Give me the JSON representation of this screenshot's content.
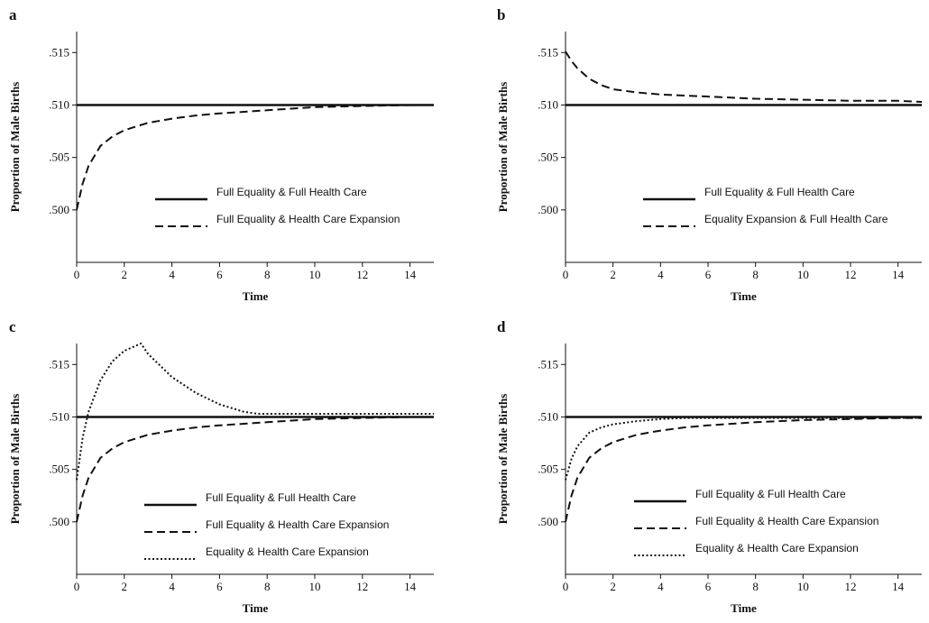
{
  "chart_data": [
    {
      "panel": "a",
      "type": "line",
      "xlabel": "Time",
      "ylabel": "Proportion of Male Births",
      "xlim": [
        0,
        15
      ],
      "ylim": [
        0.495,
        0.517
      ],
      "xticks": [
        0,
        2,
        4,
        6,
        8,
        10,
        12,
        14
      ],
      "xtick_labels": [
        "0",
        "2",
        "4",
        "6",
        "8",
        "10",
        "12",
        "14"
      ],
      "yticks": [
        0.5,
        0.505,
        0.51,
        0.515
      ],
      "ytick_labels": [
        ".500",
        ".505",
        ".510",
        ".515"
      ],
      "legend_position": "lower-right",
      "series": [
        {
          "name": "Full Equality & Full Health Care",
          "style": "solid",
          "x": [
            0,
            15
          ],
          "y": [
            0.51,
            0.51
          ]
        },
        {
          "name": "Full Equality & Health Care Expansion",
          "style": "dashed",
          "x": [
            0,
            0.25,
            0.5,
            1,
            1.5,
            2,
            3,
            4,
            5,
            6,
            8,
            10,
            12,
            14,
            15
          ],
          "y": [
            0.5,
            0.5025,
            0.5042,
            0.5061,
            0.507,
            0.5076,
            0.5083,
            0.5087,
            0.509,
            0.5092,
            0.5095,
            0.5098,
            0.5099,
            0.51,
            0.51
          ]
        }
      ]
    },
    {
      "panel": "b",
      "type": "line",
      "xlabel": "Time",
      "ylabel": "Proportion of Male Births",
      "xlim": [
        0,
        15
      ],
      "ylim": [
        0.495,
        0.517
      ],
      "xticks": [
        0,
        2,
        4,
        6,
        8,
        10,
        12,
        14
      ],
      "xtick_labels": [
        "0",
        "2",
        "4",
        "6",
        "8",
        "10",
        "12",
        "14"
      ],
      "yticks": [
        0.5,
        0.505,
        0.51,
        0.515
      ],
      "ytick_labels": [
        ".500",
        ".505",
        ".510",
        ".515"
      ],
      "legend_position": "lower-right",
      "series": [
        {
          "name": "Full Equality & Full Health Care",
          "style": "solid",
          "x": [
            0,
            15
          ],
          "y": [
            0.51,
            0.51
          ]
        },
        {
          "name": "Equality Expansion & Full Health Care",
          "style": "dashed",
          "x": [
            0,
            0.25,
            0.5,
            1,
            1.5,
            2,
            3,
            4,
            5,
            6,
            8,
            10,
            12,
            14,
            15
          ],
          "y": [
            0.5151,
            0.5142,
            0.5135,
            0.5125,
            0.5119,
            0.5115,
            0.5112,
            0.511,
            0.5109,
            0.5108,
            0.5106,
            0.5105,
            0.5104,
            0.5104,
            0.5103
          ]
        }
      ]
    },
    {
      "panel": "c",
      "type": "line",
      "xlabel": "Time",
      "ylabel": "Proportion of Male Births",
      "xlim": [
        0,
        15
      ],
      "ylim": [
        0.495,
        0.517
      ],
      "xticks": [
        0,
        2,
        4,
        6,
        8,
        10,
        12,
        14
      ],
      "xtick_labels": [
        "0",
        "2",
        "4",
        "6",
        "8",
        "10",
        "12",
        "14"
      ],
      "yticks": [
        0.5,
        0.505,
        0.51,
        0.515
      ],
      "ytick_labels": [
        ".500",
        ".505",
        ".510",
        ".515"
      ],
      "legend_position": "lower-right",
      "series": [
        {
          "name": "Full Equality & Full Health Care",
          "style": "solid",
          "x": [
            0,
            15
          ],
          "y": [
            0.51,
            0.51
          ]
        },
        {
          "name": "Full Equality & Health Care Expansion",
          "style": "dashed",
          "x": [
            0,
            0.25,
            0.5,
            1,
            1.5,
            2,
            3,
            4,
            5,
            6,
            8,
            10,
            12,
            14,
            15
          ],
          "y": [
            0.5,
            0.5025,
            0.5042,
            0.5061,
            0.507,
            0.5076,
            0.5083,
            0.5087,
            0.509,
            0.5092,
            0.5095,
            0.5098,
            0.5099,
            0.51,
            0.51
          ]
        },
        {
          "name": "Equality & Health Care Expansion",
          "style": "dotted",
          "x": [
            0,
            0.25,
            0.5,
            1,
            1.5,
            2,
            2.5,
            2.7,
            3,
            3.5,
            4,
            5,
            6,
            7,
            7.6,
            8,
            10,
            12,
            15
          ],
          "y": [
            0.504,
            0.508,
            0.5105,
            0.5135,
            0.5153,
            0.5163,
            0.5168,
            0.517,
            0.516,
            0.5149,
            0.5138,
            0.5123,
            0.5112,
            0.5105,
            0.5103,
            0.5103,
            0.5103,
            0.5103,
            0.5103
          ]
        }
      ]
    },
    {
      "panel": "d",
      "type": "line",
      "xlabel": "Time",
      "ylabel": "Proportion of Male Births",
      "xlim": [
        0,
        15
      ],
      "ylim": [
        0.495,
        0.517
      ],
      "xticks": [
        0,
        2,
        4,
        6,
        8,
        10,
        12,
        14
      ],
      "xtick_labels": [
        "0",
        "2",
        "4",
        "6",
        "8",
        "10",
        "12",
        "14"
      ],
      "yticks": [
        0.5,
        0.505,
        0.51,
        0.515
      ],
      "ytick_labels": [
        ".500",
        ".505",
        ".510",
        ".515"
      ],
      "legend_position": "lower-right",
      "series": [
        {
          "name": "Full Equality & Full Health Care",
          "style": "solid",
          "x": [
            0,
            15
          ],
          "y": [
            0.51,
            0.51
          ]
        },
        {
          "name": "Full Equality & Health Care Expansion",
          "style": "dashed",
          "x": [
            0,
            0.25,
            0.5,
            1,
            1.5,
            2,
            3,
            4,
            5,
            6,
            8,
            10,
            12,
            14,
            15
          ],
          "y": [
            0.5,
            0.5025,
            0.5042,
            0.5061,
            0.507,
            0.5076,
            0.5083,
            0.5087,
            0.509,
            0.5092,
            0.5095,
            0.5097,
            0.5098,
            0.5099,
            0.5099
          ]
        },
        {
          "name": "Equality & Health Care Expansion",
          "style": "dotted",
          "x": [
            0,
            0.25,
            0.5,
            1,
            1.5,
            2,
            3,
            4,
            5,
            6,
            8,
            10,
            12,
            14,
            15
          ],
          "y": [
            0.504,
            0.506,
            0.5072,
            0.5085,
            0.509,
            0.5093,
            0.5096,
            0.5098,
            0.5099,
            0.5099,
            0.5099,
            0.5099,
            0.5099,
            0.5099,
            0.5099
          ]
        }
      ]
    }
  ]
}
